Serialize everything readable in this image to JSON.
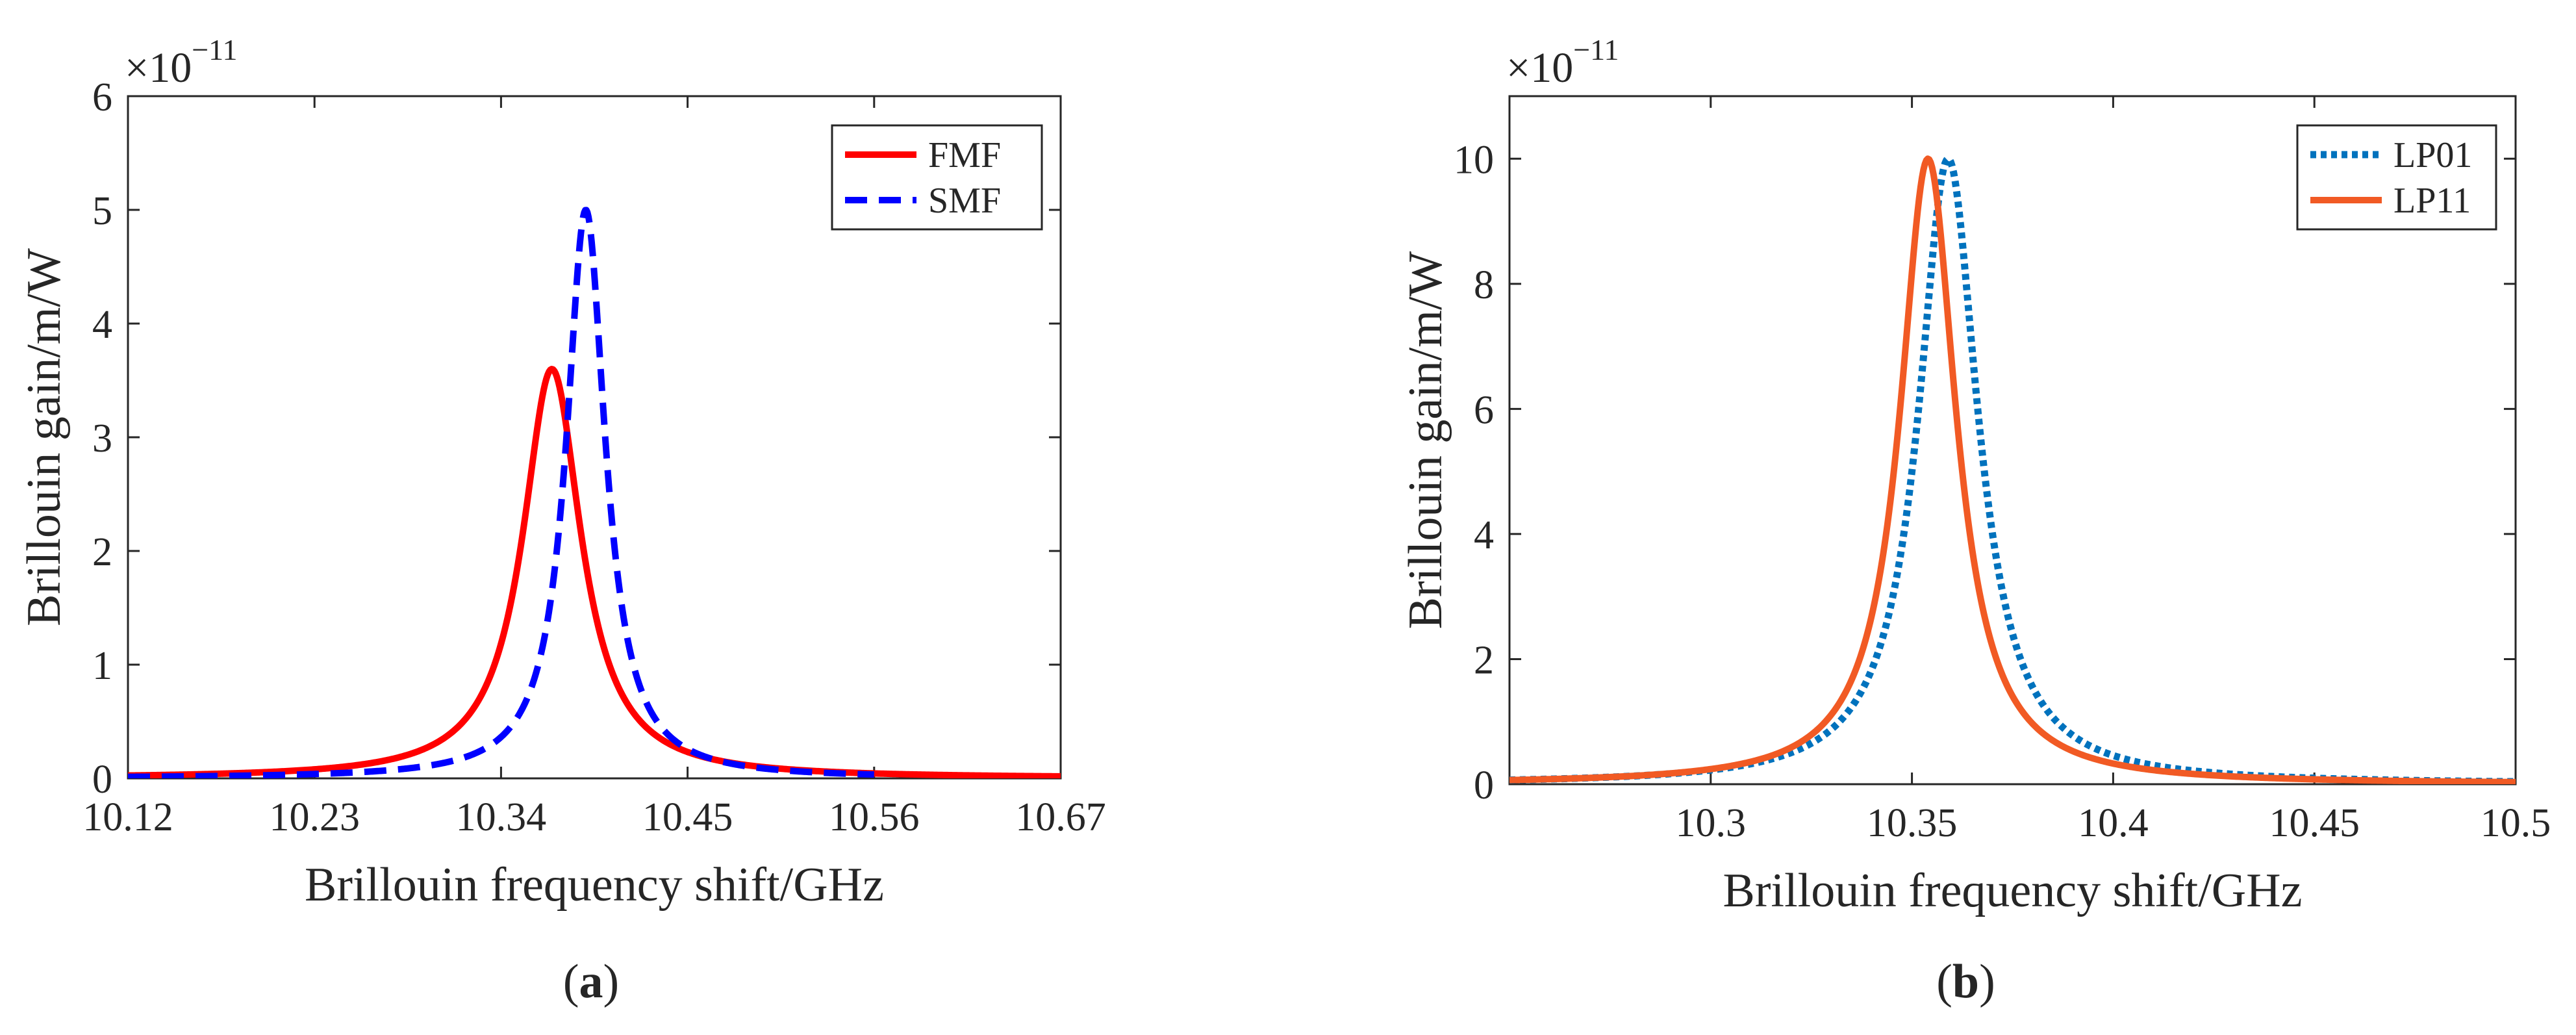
{
  "chart_data": [
    {
      "type": "line",
      "panel_caption": {
        "open": "(",
        "letter": "a",
        "close": ")"
      },
      "xlabel": "Brillouin frequency shift/GHz",
      "ylabel": "Brillouin gain/m/W",
      "y_multiplier": {
        "base": "×10",
        "exponent": "−11"
      },
      "xlim": [
        10.12,
        10.67
      ],
      "ylim": [
        0,
        6
      ],
      "xticks": [
        "10.12",
        "10.23",
        "10.34",
        "10.45",
        "10.56",
        "10.67"
      ],
      "yticks": [
        "0",
        "1",
        "2",
        "3",
        "4",
        "5",
        "6"
      ],
      "legend_position": "top-right",
      "series": [
        {
          "name": "FMF",
          "color": "#ff0000",
          "style": "solid",
          "model": "lorentzian",
          "peak_x": 10.37,
          "peak_y": 3.6,
          "fwhm": 0.042,
          "x_range": [
            10.12,
            10.67
          ]
        },
        {
          "name": "SMF",
          "color": "#0000ff",
          "style": "dashed",
          "model": "lorentzian",
          "peak_x": 10.39,
          "peak_y": 5.0,
          "fwhm": 0.028,
          "x_range": [
            10.12,
            10.56
          ]
        }
      ]
    },
    {
      "type": "line",
      "panel_caption": {
        "open": "(",
        "letter": "b",
        "close": ")"
      },
      "xlabel": "Brillouin frequency shift/GHz",
      "ylabel": "Brillouin gain/m/W",
      "y_multiplier": {
        "base": "×10",
        "exponent": "−11"
      },
      "xlim": [
        10.25,
        10.5
      ],
      "ylim": [
        0,
        11
      ],
      "xticks": [
        "10.3",
        "10.35",
        "10.4",
        "10.45",
        "10.5"
      ],
      "yticks": [
        "0",
        "2",
        "4",
        "6",
        "8",
        "10"
      ],
      "legend_position": "top-right",
      "series": [
        {
          "name": "LP01",
          "color": "#0072bd",
          "style": "dotted",
          "model": "lorentzian",
          "peak_x": 10.359,
          "peak_y": 10.0,
          "fwhm": 0.018,
          "x_range": [
            10.25,
            10.5
          ]
        },
        {
          "name": "LP11",
          "color": "#f15a24",
          "style": "solid",
          "model": "lorentzian",
          "peak_x": 10.354,
          "peak_y": 10.0,
          "fwhm": 0.017,
          "x_range": [
            10.25,
            10.5
          ]
        }
      ]
    }
  ]
}
